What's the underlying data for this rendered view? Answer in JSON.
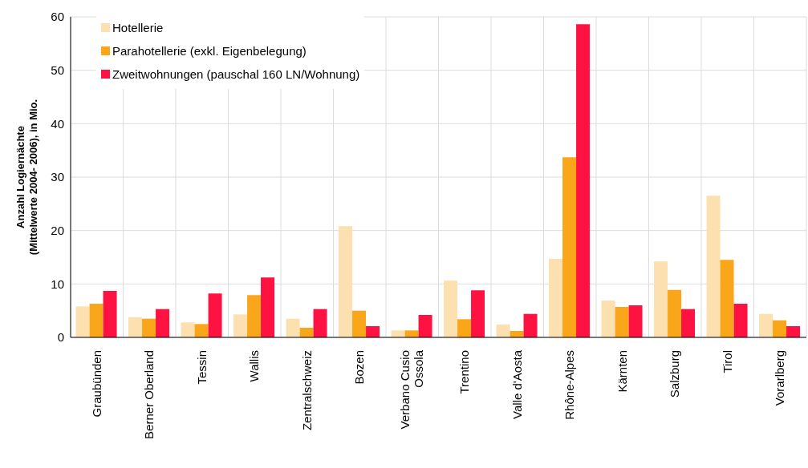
{
  "chart_data": {
    "type": "bar",
    "ylabel": "Anzahl Logiernächte\n(Mittelwerte 2004- 2006), in Mio.",
    "categories": [
      "Graubünden",
      "Berner Oberland",
      "Tessin",
      "Wallis",
      "Zentralschweiz",
      "Bozen",
      "Verbano Cusio Ossola",
      "Trentino",
      "Valle d'Aosta",
      "Rhône-Alpes",
      "Kärnten",
      "Salzburg",
      "Tirol",
      "Vorarlberg"
    ],
    "series": [
      {
        "name": "Hotellerie",
        "color": "#fce0b0",
        "values": [
          5.8,
          3.8,
          2.8,
          4.3,
          3.5,
          20.8,
          1.3,
          10.6,
          2.4,
          14.7,
          6.9,
          14.2,
          26.5,
          4.4
        ]
      },
      {
        "name": "Parahotellerie (exkl. Eigenbelegung)",
        "color": "#f9a61a",
        "values": [
          6.3,
          3.5,
          2.5,
          7.9,
          1.8,
          5.0,
          1.3,
          3.4,
          1.2,
          33.7,
          5.7,
          8.9,
          14.5,
          3.2
        ]
      },
      {
        "name": "Zweitwohnungen (pauschal 160 LN/Wohnung)",
        "color": "#fe1241",
        "values": [
          8.7,
          5.3,
          8.2,
          11.2,
          5.3,
          2.1,
          4.2,
          8.8,
          4.4,
          58.6,
          6.0,
          5.3,
          6.3,
          2.1
        ]
      }
    ],
    "ylim": [
      0,
      60
    ],
    "yticks": [
      0,
      10,
      20,
      30,
      40,
      50,
      60
    ],
    "grid": true,
    "legend": "top left"
  }
}
